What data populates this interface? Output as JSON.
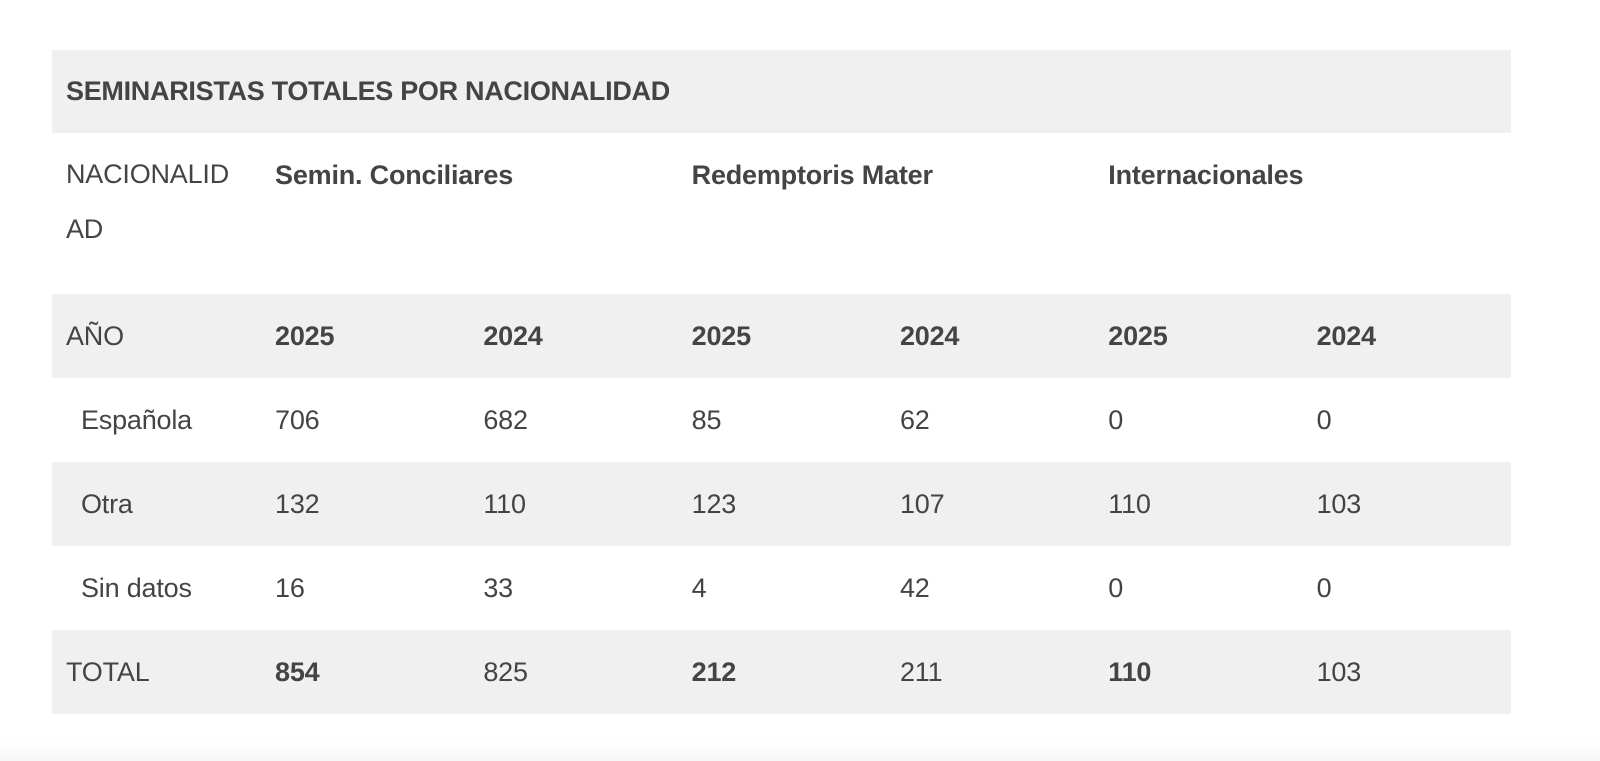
{
  "table": {
    "title": "SEMINARISTAS TOTALES POR NACIONALIDAD",
    "header": {
      "label": "NACIONALIDAD",
      "groups": [
        "Semin. Conciliares",
        "Redemptoris Mater",
        "Internacionales"
      ]
    },
    "year_row": {
      "label": "AÑO",
      "years": [
        "2025",
        "2024",
        "2025",
        "2024",
        "2025",
        "2024"
      ]
    },
    "rows": [
      {
        "label": "Española",
        "values": [
          "706",
          "682",
          "85",
          "62",
          "0",
          "0"
        ]
      },
      {
        "label": "Otra",
        "values": [
          "132",
          "110",
          "123",
          "107",
          "110",
          "103"
        ]
      },
      {
        "label": "Sin datos",
        "values": [
          "16",
          "33",
          "4",
          "42",
          "0",
          "0"
        ]
      }
    ],
    "total": {
      "label": "TOTAL",
      "values": [
        "854",
        "825",
        "212",
        "211",
        "110",
        "103"
      ]
    }
  },
  "colors": {
    "shade": "#f0f0f0",
    "text": "#444444",
    "background": "#ffffff"
  }
}
